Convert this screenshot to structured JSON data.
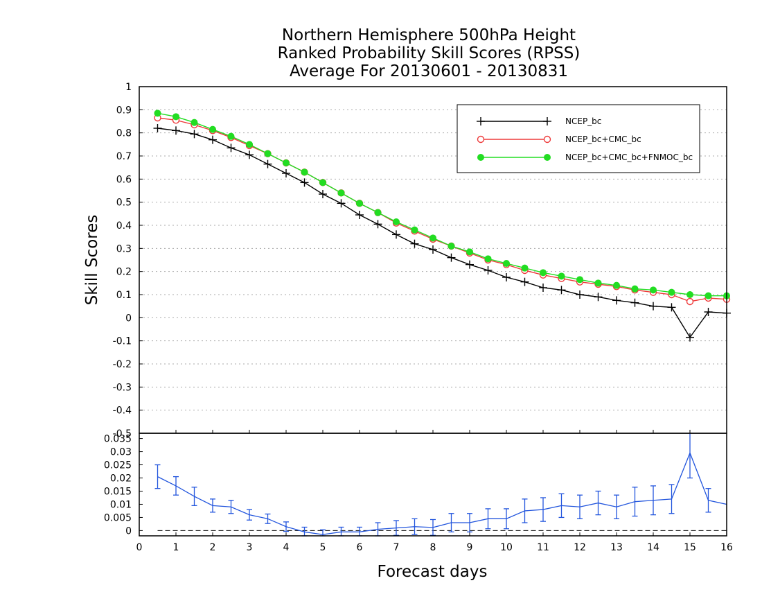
{
  "title_lines": [
    "Northern Hemisphere 500hPa Height",
    "Ranked Probability Skill Scores (RPSS)",
    "Average For 20130601 - 20130831"
  ],
  "chart_data": [
    {
      "type": "line",
      "ylabel": "Skill Scores",
      "ylim": [
        -0.5,
        1
      ],
      "xlim": [
        0,
        16
      ],
      "grid": true,
      "legend_position": "top-right",
      "yticks": [
        "1",
        "0.9",
        "0.8",
        "0.7",
        "0.6",
        "0.5",
        "0.4",
        "0.3",
        "0.2",
        "0.1",
        "0",
        "-0.1",
        "-0.2",
        "-0.3",
        "-0.4",
        "-0.5"
      ],
      "x": [
        0.5,
        1,
        1.5,
        2,
        2.5,
        3,
        3.5,
        4,
        4.5,
        5,
        5.5,
        6,
        6.5,
        7,
        7.5,
        8,
        8.5,
        9,
        9.5,
        10,
        10.5,
        11,
        11.5,
        12,
        12.5,
        13,
        13.5,
        14,
        14.5,
        15,
        15.5,
        16
      ],
      "series": [
        {
          "name": "NCEP_bc",
          "color": "#000000",
          "marker": "plus",
          "values": [
            0.82,
            0.81,
            0.795,
            0.77,
            0.735,
            0.705,
            0.665,
            0.625,
            0.585,
            0.535,
            0.495,
            0.445,
            0.405,
            0.36,
            0.32,
            0.295,
            0.26,
            0.23,
            0.205,
            0.175,
            0.155,
            0.13,
            0.12,
            0.1,
            0.09,
            0.075,
            0.065,
            0.05,
            0.045,
            -0.085,
            0.025,
            0.02
          ]
        },
        {
          "name": "NCEP_bc+CMC_bc",
          "color": "#ee3a3a",
          "marker": "open-circle",
          "values": [
            0.865,
            0.855,
            0.835,
            0.81,
            0.78,
            0.745,
            0.71,
            0.67,
            0.63,
            0.585,
            0.54,
            0.495,
            0.455,
            0.41,
            0.375,
            0.34,
            0.31,
            0.28,
            0.25,
            0.23,
            0.205,
            0.185,
            0.17,
            0.155,
            0.145,
            0.135,
            0.12,
            0.11,
            0.1,
            0.07,
            0.085,
            0.08
          ]
        },
        {
          "name": "NCEP_bc+CMC_bc+FNMOC_bc",
          "color": "#22dd22",
          "marker": "filled-circle",
          "values": [
            0.885,
            0.87,
            0.845,
            0.815,
            0.785,
            0.75,
            0.71,
            0.67,
            0.63,
            0.585,
            0.54,
            0.495,
            0.455,
            0.415,
            0.38,
            0.345,
            0.31,
            0.285,
            0.255,
            0.235,
            0.215,
            0.195,
            0.18,
            0.165,
            0.15,
            0.14,
            0.125,
            0.12,
            0.11,
            0.1,
            0.095,
            0.095
          ]
        }
      ]
    },
    {
      "type": "line",
      "xlabel": "Forecast days",
      "xticks": [
        "0",
        "1",
        "2",
        "3",
        "4",
        "5",
        "6",
        "7",
        "8",
        "9",
        "10",
        "11",
        "12",
        "13",
        "14",
        "15",
        "16"
      ],
      "ylim": [
        -0.002,
        0.037
      ],
      "yticks": [
        "0.035",
        "0.03",
        "0.025",
        "0.02",
        "0.015",
        "0.01",
        "0.005",
        "0"
      ],
      "x": [
        0.5,
        1,
        1.5,
        2,
        2.5,
        3,
        3.5,
        4,
        4.5,
        5,
        5.5,
        6,
        6.5,
        7,
        7.5,
        8,
        8.5,
        9,
        9.5,
        10,
        10.5,
        11,
        11.5,
        12,
        12.5,
        13,
        13.5,
        14,
        14.5,
        15,
        15.5,
        16
      ],
      "series": [
        {
          "color": "#2255dd",
          "error_bars": true,
          "values": [
            0.0205,
            0.017,
            0.013,
            0.0095,
            0.009,
            0.006,
            0.0045,
            0.0015,
            -0.0005,
            -0.0015,
            -0.0005,
            -0.0005,
            0.0005,
            0.001,
            0.0015,
            0.0012,
            0.003,
            0.003,
            0.0045,
            0.0045,
            0.0075,
            0.008,
            0.0095,
            0.009,
            0.0105,
            0.009,
            0.011,
            0.0115,
            0.012,
            0.0295,
            0.0115,
            0.01
          ],
          "errors": [
            0.0045,
            0.0035,
            0.0035,
            0.0025,
            0.0025,
            0.002,
            0.0018,
            0.0018,
            0.0018,
            0.0018,
            0.0018,
            0.0018,
            0.0025,
            0.0028,
            0.003,
            0.003,
            0.0035,
            0.0035,
            0.0038,
            0.0038,
            0.0045,
            0.0045,
            0.0045,
            0.0045,
            0.0045,
            0.0045,
            0.0055,
            0.0055,
            0.0055,
            0.0095,
            0.0045,
            0
          ]
        }
      ]
    }
  ]
}
